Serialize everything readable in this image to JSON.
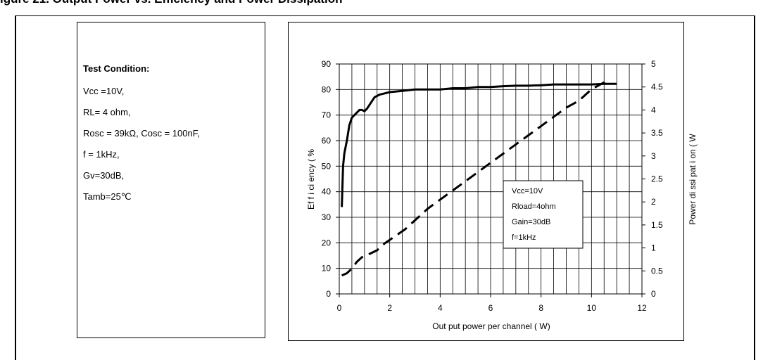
{
  "figure": {
    "title": "igure 21. Output Power vs. Efficiency and Power Dissipation"
  },
  "test_condition": {
    "title": "Test Condition:",
    "lines": [
      "Vcc =10V,",
      "RL= 4 ohm,",
      "Rosc = 39kΩ, Cosc = 100nF,",
      "f = 1kHz,",
      "Gv=30dB,",
      "Tamb=25℃"
    ]
  },
  "chart_data": {
    "type": "line",
    "xlabel": "Out put  power  per  channel  ( W)",
    "ylabel": "Ef f i ci ency  ( %",
    "y2label": "Power  di ssi pat i on  ( W",
    "xlim": [
      0,
      12
    ],
    "ylim": [
      0,
      90
    ],
    "y2lim": [
      0,
      5
    ],
    "xticks": [
      0,
      2,
      4,
      6,
      8,
      10,
      12
    ],
    "yticks": [
      0,
      10,
      20,
      30,
      40,
      50,
      60,
      70,
      80,
      90
    ],
    "y2ticks": [
      0,
      0.5,
      1,
      1.5,
      2,
      2.5,
      3,
      3.5,
      4,
      4.5,
      5
    ],
    "grid": true,
    "series": [
      {
        "axis": "left",
        "style": "solid",
        "x": [
          0.1,
          0.15,
          0.2,
          0.3,
          0.4,
          0.5,
          0.6,
          0.7,
          0.8,
          0.9,
          1.0,
          1.1,
          1.2,
          1.4,
          1.6,
          1.8,
          2.0,
          2.5,
          3.0,
          3.5,
          4.0,
          4.5,
          5.0,
          5.5,
          6.0,
          6.5,
          7.0,
          7.5,
          8.0,
          8.5,
          9.0,
          9.5,
          10.0,
          10.5,
          11.0
        ],
        "values": [
          34,
          50,
          55,
          60,
          66,
          69,
          70,
          71,
          72,
          72,
          71.5,
          72.5,
          74,
          77,
          78,
          78.5,
          79,
          79.5,
          80,
          80,
          80,
          80.5,
          80.5,
          81,
          81,
          81.3,
          81.5,
          81.5,
          81.7,
          82,
          82,
          82,
          82,
          82.2,
          82.2
        ]
      },
      {
        "axis": "right",
        "style": "dashed",
        "x": [
          0.1,
          0.3,
          0.5,
          0.7,
          0.9,
          1.2,
          1.5,
          1.8,
          2.2,
          2.6,
          3.0,
          3.5,
          4.0,
          4.5,
          5.0,
          5.5,
          6.0,
          6.5,
          7.0,
          7.5,
          8.0,
          8.5,
          9.0,
          9.5,
          10.0,
          10.5,
          10.6
        ],
        "values": [
          0.4,
          0.45,
          0.55,
          0.7,
          0.8,
          0.87,
          0.95,
          1.1,
          1.25,
          1.4,
          1.6,
          1.85,
          2.05,
          2.25,
          2.45,
          2.65,
          2.85,
          3.05,
          3.25,
          3.45,
          3.65,
          3.85,
          4.05,
          4.2,
          4.45,
          4.6,
          4.65
        ]
      }
    ],
    "legend": {
      "position": "lower-right",
      "lines": [
        "Vcc=10V",
        "Rload=4ohm",
        "Gain=30dB",
        "f=1kHz"
      ]
    }
  }
}
